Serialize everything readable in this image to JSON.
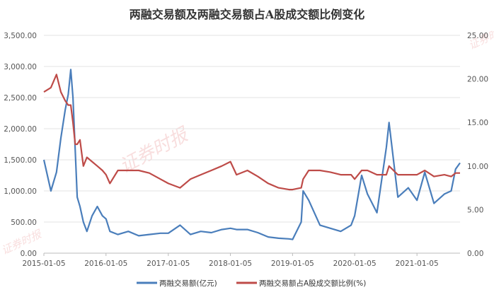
{
  "chart_data": {
    "type": "line",
    "title": "两融交易额及两融交易额占A股成交额比例变化",
    "watermark": "证券时报",
    "x_tick_labels": [
      "2015-01-05",
      "2016-01-05",
      "2017-01-05",
      "2018-01-05",
      "2019-01-05",
      "2020-01-05",
      "2021-01-05"
    ],
    "x_range": [
      "2015-01-05",
      "2021-09-15"
    ],
    "y_left": {
      "range": [
        0,
        3500
      ],
      "ticks": [
        "0.00",
        "500.00",
        "1,000.00",
        "1,500.00",
        "2,000.00",
        "2,500.00",
        "3,000.00",
        "3,500.00"
      ]
    },
    "y_right": {
      "range": [
        0,
        25
      ],
      "ticks": [
        "0.00",
        "5.00",
        "10.00",
        "15.00",
        "20.00",
        "25.00"
      ]
    },
    "grid": true,
    "legend_position": "bottom",
    "colors": {
      "amount": "#4a7ebb",
      "ratio": "#be4b48"
    },
    "series": [
      {
        "name": "两融交易额(亿元)",
        "axis": "left",
        "x": [
          "2015-01-05",
          "2015-02-15",
          "2015-03-20",
          "2015-04-15",
          "2015-05-10",
          "2015-05-28",
          "2015-06-12",
          "2015-06-25",
          "2015-07-08",
          "2015-07-20",
          "2015-08-05",
          "2015-08-25",
          "2015-09-15",
          "2015-10-15",
          "2015-11-15",
          "2015-12-15",
          "2016-01-05",
          "2016-01-28",
          "2016-03-15",
          "2016-05-15",
          "2016-07-15",
          "2016-09-15",
          "2016-11-20",
          "2017-01-05",
          "2017-03-15",
          "2017-05-15",
          "2017-07-15",
          "2017-09-15",
          "2017-11-15",
          "2018-01-05",
          "2018-02-10",
          "2018-04-15",
          "2018-06-15",
          "2018-08-15",
          "2018-10-15",
          "2018-12-15",
          "2019-01-05",
          "2019-02-25",
          "2019-03-08",
          "2019-04-10",
          "2019-06-15",
          "2019-08-15",
          "2019-10-15",
          "2019-12-15",
          "2020-01-05",
          "2020-02-15",
          "2020-03-20",
          "2020-05-15",
          "2020-07-09",
          "2020-07-25",
          "2020-09-15",
          "2020-11-15",
          "2021-01-05",
          "2021-02-20",
          "2021-04-15",
          "2021-06-15",
          "2021-07-25",
          "2021-08-20",
          "2021-09-15"
        ],
        "values": [
          1500,
          1000,
          1300,
          1850,
          2300,
          2550,
          2950,
          2500,
          1650,
          900,
          750,
          500,
          350,
          600,
          750,
          600,
          550,
          350,
          300,
          350,
          280,
          300,
          320,
          320,
          450,
          300,
          350,
          330,
          380,
          400,
          380,
          380,
          330,
          260,
          240,
          230,
          220,
          500,
          1000,
          850,
          450,
          400,
          350,
          450,
          600,
          1250,
          950,
          650,
          1700,
          2100,
          900,
          1050,
          850,
          1300,
          800,
          950,
          1000,
          1350,
          1450
        ]
      },
      {
        "name": "两融交易额占A股成交额比例(%)",
        "axis": "right",
        "x": [
          "2015-01-05",
          "2015-02-15",
          "2015-03-20",
          "2015-04-15",
          "2015-05-10",
          "2015-05-28",
          "2015-06-12",
          "2015-06-25",
          "2015-07-08",
          "2015-07-20",
          "2015-08-05",
          "2015-08-25",
          "2015-09-15",
          "2015-10-15",
          "2015-11-15",
          "2015-12-15",
          "2016-01-05",
          "2016-01-28",
          "2016-03-15",
          "2016-05-15",
          "2016-07-15",
          "2016-09-15",
          "2016-11-20",
          "2017-01-05",
          "2017-03-15",
          "2017-05-15",
          "2017-07-15",
          "2017-09-15",
          "2017-11-15",
          "2018-01-05",
          "2018-02-10",
          "2018-04-15",
          "2018-06-15",
          "2018-08-15",
          "2018-10-15",
          "2018-12-15",
          "2019-01-05",
          "2019-02-25",
          "2019-03-08",
          "2019-04-10",
          "2019-06-15",
          "2019-08-15",
          "2019-10-15",
          "2019-12-15",
          "2020-01-05",
          "2020-02-15",
          "2020-03-20",
          "2020-05-15",
          "2020-07-09",
          "2020-07-25",
          "2020-09-15",
          "2020-11-15",
          "2021-01-05",
          "2021-02-20",
          "2021-04-15",
          "2021-06-15",
          "2021-07-25",
          "2021-08-20",
          "2021-09-15"
        ],
        "values": [
          18.5,
          19,
          20.5,
          18.5,
          17.5,
          17,
          17,
          15,
          12.5,
          12.5,
          13,
          10,
          11,
          10.5,
          10,
          9.5,
          9,
          8,
          9.5,
          9.5,
          9.5,
          9.2,
          8.5,
          8,
          7.5,
          8.5,
          9,
          9.5,
          10,
          10.5,
          9,
          9.5,
          8.8,
          8,
          7.5,
          7.3,
          7.3,
          7.5,
          8.5,
          9.5,
          9.5,
          9.3,
          9,
          9,
          8.5,
          9.5,
          9.5,
          9,
          9,
          10,
          9,
          9,
          9,
          9.5,
          8.8,
          9,
          8.8,
          9.2,
          9.2
        ]
      }
    ]
  }
}
